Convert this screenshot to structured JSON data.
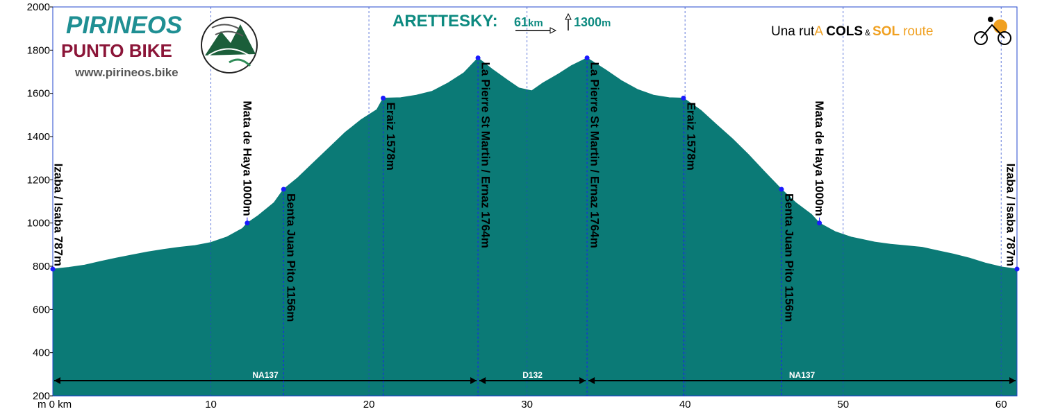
{
  "colors": {
    "fill": "#0b7a76",
    "grid": "#2244cc",
    "brand_teal": "#1f8f93",
    "brand_maroon": "#8b1538",
    "title_teal": "#0d8a80",
    "accent_orange": "#f0a020",
    "waypoint": "#1a1aff"
  },
  "header": {
    "route_name": "ARETTESKY:",
    "distance": "61",
    "distance_unit": "km",
    "ascent": "1300",
    "ascent_unit": "m"
  },
  "branding": {
    "line1": "PIRINEOS",
    "line2": "PUNTO BIKE",
    "website": "www.pirineos.bike",
    "logo_icon": "mountain-logo-icon",
    "tagline_prefix": "Una rut",
    "tagline_a": "A",
    "tagline_cols": "COLS",
    "tagline_amp": "&",
    "tagline_sol": "SOL",
    "tagline_route": "route",
    "cyclist_icon": "cyclist-sun-icon"
  },
  "chart_data": {
    "type": "area",
    "ylim": [
      200,
      2000
    ],
    "xlim": [
      0,
      61
    ],
    "y_ticks": [
      200,
      400,
      600,
      800,
      1000,
      1200,
      1400,
      1600,
      1800,
      2000
    ],
    "x_ticks": [
      0,
      10,
      20,
      30,
      40,
      50,
      60
    ],
    "x_tick_labels": [
      "m 0 km",
      "10",
      "20",
      "30",
      "40",
      "50",
      "60"
    ],
    "profile": [
      [
        0,
        787
      ],
      [
        1,
        795
      ],
      [
        2,
        805
      ],
      [
        3,
        822
      ],
      [
        4,
        838
      ],
      [
        5,
        852
      ],
      [
        6,
        866
      ],
      [
        7,
        878
      ],
      [
        8,
        888
      ],
      [
        9,
        896
      ],
      [
        10,
        910
      ],
      [
        11,
        935
      ],
      [
        12,
        975
      ],
      [
        12.3,
        1000
      ],
      [
        13,
        1035
      ],
      [
        14,
        1095
      ],
      [
        14.6,
        1156
      ],
      [
        15.5,
        1210
      ],
      [
        16.5,
        1280
      ],
      [
        17.5,
        1350
      ],
      [
        18.5,
        1420
      ],
      [
        19.5,
        1478
      ],
      [
        20.5,
        1525
      ],
      [
        20.9,
        1578
      ],
      [
        22,
        1580
      ],
      [
        23,
        1592
      ],
      [
        24,
        1610
      ],
      [
        25,
        1648
      ],
      [
        26,
        1695
      ],
      [
        26.9,
        1764
      ],
      [
        27.8,
        1712
      ],
      [
        28.8,
        1660
      ],
      [
        29.5,
        1625
      ],
      [
        30.3,
        1612
      ],
      [
        31,
        1648
      ],
      [
        32,
        1690
      ],
      [
        32.8,
        1728
      ],
      [
        33.8,
        1764
      ],
      [
        35,
        1708
      ],
      [
        36,
        1658
      ],
      [
        37,
        1618
      ],
      [
        38,
        1592
      ],
      [
        39,
        1580
      ],
      [
        39.9,
        1578
      ],
      [
        41,
        1522
      ],
      [
        42,
        1455
      ],
      [
        43,
        1390
      ],
      [
        44,
        1318
      ],
      [
        45,
        1240
      ],
      [
        46.1,
        1156
      ],
      [
        47,
        1095
      ],
      [
        48,
        1040
      ],
      [
        48.5,
        1000
      ],
      [
        49.5,
        960
      ],
      [
        50.5,
        935
      ],
      [
        52,
        912
      ],
      [
        53,
        902
      ],
      [
        54,
        895
      ],
      [
        55,
        888
      ],
      [
        56,
        872
      ],
      [
        57,
        856
      ],
      [
        58,
        838
      ],
      [
        59,
        815
      ],
      [
        60,
        797
      ],
      [
        61,
        787
      ]
    ],
    "waypoints": [
      {
        "x": 0,
        "y": 787,
        "label": "Izaba / Isaba 787m",
        "side": "right"
      },
      {
        "x": 12.3,
        "y": 1000,
        "label": "Mata de Haya 1000m",
        "side": "up"
      },
      {
        "x": 14.6,
        "y": 1156,
        "label": "Benta Juan Pito 1156m",
        "side": "down"
      },
      {
        "x": 20.9,
        "y": 1578,
        "label": "Eraiz 1578m",
        "side": "down"
      },
      {
        "x": 26.9,
        "y": 1764,
        "label": "La Pierre St Martin / Ernaz 1764m",
        "side": "down"
      },
      {
        "x": 33.8,
        "y": 1764,
        "label": "La Pierre St Martin / Ernaz 1764m",
        "side": "down"
      },
      {
        "x": 39.9,
        "y": 1578,
        "label": "Eraiz 1578m",
        "side": "down"
      },
      {
        "x": 46.1,
        "y": 1156,
        "label": "Benta Juan Pito 1156m",
        "side": "down"
      },
      {
        "x": 48.5,
        "y": 1000,
        "label": "Mata de Haya 1000m",
        "side": "up"
      },
      {
        "x": 61,
        "y": 787,
        "label": "Izaba / Isaba 787m",
        "side": "left"
      }
    ],
    "roads": [
      {
        "label": "NA137",
        "from": 0,
        "to": 26.9
      },
      {
        "label": "D132",
        "from": 26.9,
        "to": 33.8
      },
      {
        "label": "NA137",
        "from": 33.8,
        "to": 61
      }
    ]
  }
}
